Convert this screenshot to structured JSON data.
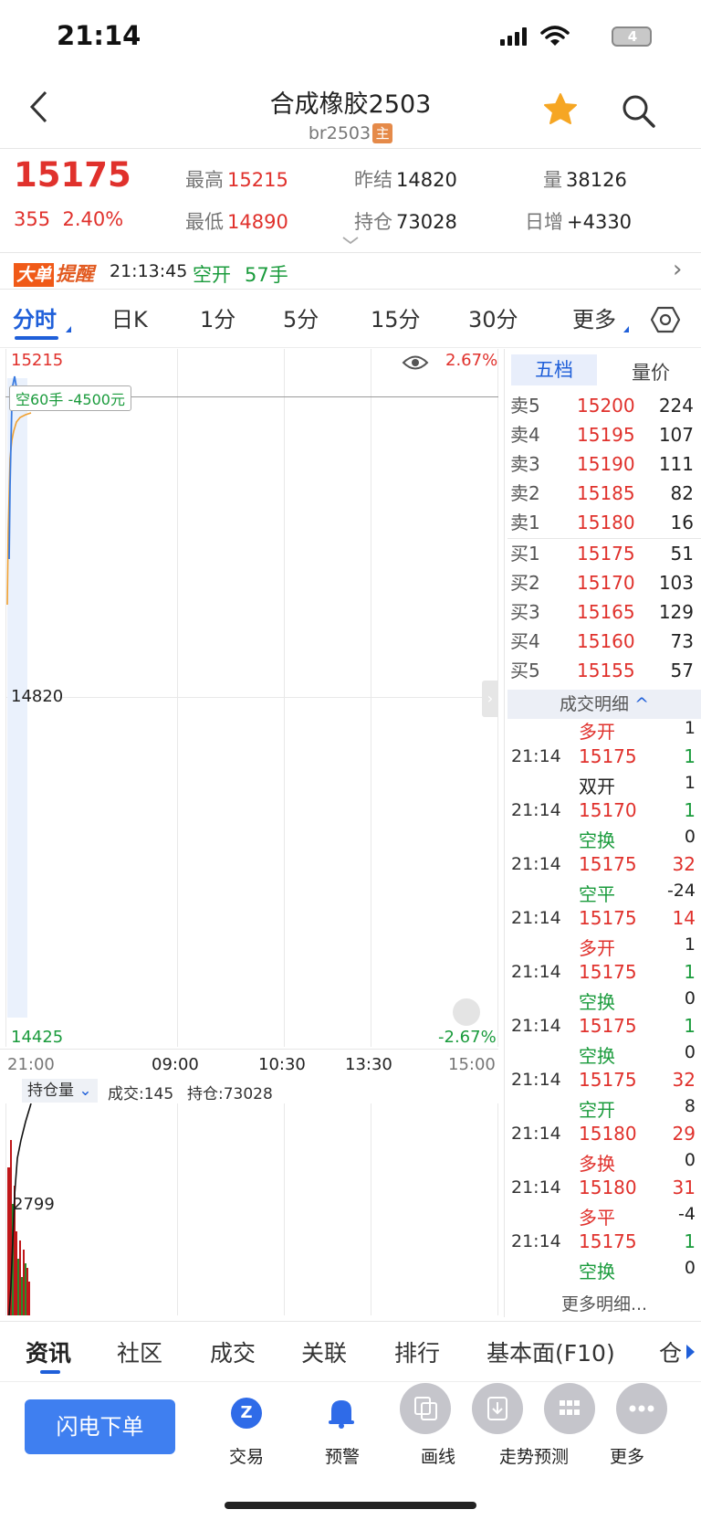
{
  "status_bar": {
    "time": "21:14",
    "battery": "4"
  },
  "header": {
    "title": "合成橡胶2503",
    "subtitle": "br2503",
    "main_tag": "主"
  },
  "quote": {
    "last_price": "15175",
    "change": "355",
    "change_pct": "2.40%",
    "high_label": "最高",
    "high": "15215",
    "low_label": "最低",
    "low": "14890",
    "prev_settle_label": "昨结",
    "prev_settle": "14820",
    "open_interest_label": "持仓",
    "open_interest": "73028",
    "volume_label": "量",
    "volume": "38126",
    "daily_increase_label": "日增",
    "daily_increase": "+4330"
  },
  "alert": {
    "tag_a": "大单",
    "tag_b": "提醒",
    "time": "21:13:45",
    "type": "空开",
    "qty": "57手",
    "chevron": "›"
  },
  "period_tabs": [
    "分时",
    "日K",
    "1分",
    "5分",
    "15分",
    "30分",
    "更多"
  ],
  "chart": {
    "price_top": "15215",
    "pct_top": "2.67%",
    "price_mid": "14820",
    "price_bottom": "14425",
    "pct_bottom": "-2.67%",
    "marker": "空60手 -4500元",
    "times": [
      "21:00",
      "09:00",
      "10:30",
      "13:30",
      "15:00"
    ],
    "sub_selector": "持仓量",
    "sub_volume": "成交:145",
    "sub_oi": "持仓:73028",
    "sub_value": "2799"
  },
  "order_book": {
    "tab_active": "五档",
    "tab_other": "量价",
    "asks": [
      {
        "label": "卖5",
        "price": "15200",
        "vol": "224"
      },
      {
        "label": "卖4",
        "price": "15195",
        "vol": "107"
      },
      {
        "label": "卖3",
        "price": "15190",
        "vol": "111"
      },
      {
        "label": "卖2",
        "price": "15185",
        "vol": "82"
      },
      {
        "label": "卖1",
        "price": "15180",
        "vol": "16"
      }
    ],
    "bids": [
      {
        "label": "买1",
        "price": "15175",
        "vol": "51"
      },
      {
        "label": "买2",
        "price": "15170",
        "vol": "103"
      },
      {
        "label": "买3",
        "price": "15165",
        "vol": "129"
      },
      {
        "label": "买4",
        "price": "15160",
        "vol": "73"
      },
      {
        "label": "买5",
        "price": "15155",
        "vol": "57"
      }
    ]
  },
  "trade_details": {
    "header": "成交明细",
    "first_type": "多开",
    "first_chg": "1",
    "rows": [
      {
        "time": "21:14",
        "price": "15175",
        "qty": "1",
        "type": "双开",
        "chg": "1"
      },
      {
        "time": "21:14",
        "price": "15170",
        "qty": "1",
        "type": "空换",
        "chg": "0"
      },
      {
        "time": "21:14",
        "price": "15175",
        "qty": "32",
        "type": "空平",
        "chg": "-24"
      },
      {
        "time": "21:14",
        "price": "15175",
        "qty": "14",
        "type": "多开",
        "chg": "1"
      },
      {
        "time": "21:14",
        "price": "15175",
        "qty": "1",
        "type": "空换",
        "chg": "0"
      },
      {
        "time": "21:14",
        "price": "15175",
        "qty": "1",
        "type": "空换",
        "chg": "0"
      },
      {
        "time": "21:14",
        "price": "15175",
        "qty": "32",
        "type": "空开",
        "chg": "8"
      },
      {
        "time": "21:14",
        "price": "15180",
        "qty": "29",
        "type": "多换",
        "chg": "0"
      },
      {
        "time": "21:14",
        "price": "15180",
        "qty": "31",
        "type": "多平",
        "chg": "-4"
      },
      {
        "time": "21:14",
        "price": "15175",
        "qty": "1",
        "type": "空换",
        "chg": "0"
      }
    ],
    "more": "更多明细..."
  },
  "bottom_tabs": [
    "资讯",
    "社区",
    "成交",
    "关联",
    "排行",
    "基本面(F10)",
    "仓"
  ],
  "bottom_nav": {
    "flash_order": "闪电下单",
    "items": [
      "交易",
      "预警",
      "画线",
      "走势预测",
      "更多"
    ]
  },
  "colors": {
    "up": "#e0312c",
    "down": "#1a9b3c",
    "accent": "#1f5fd9",
    "brand_button": "#3f7ff0"
  }
}
